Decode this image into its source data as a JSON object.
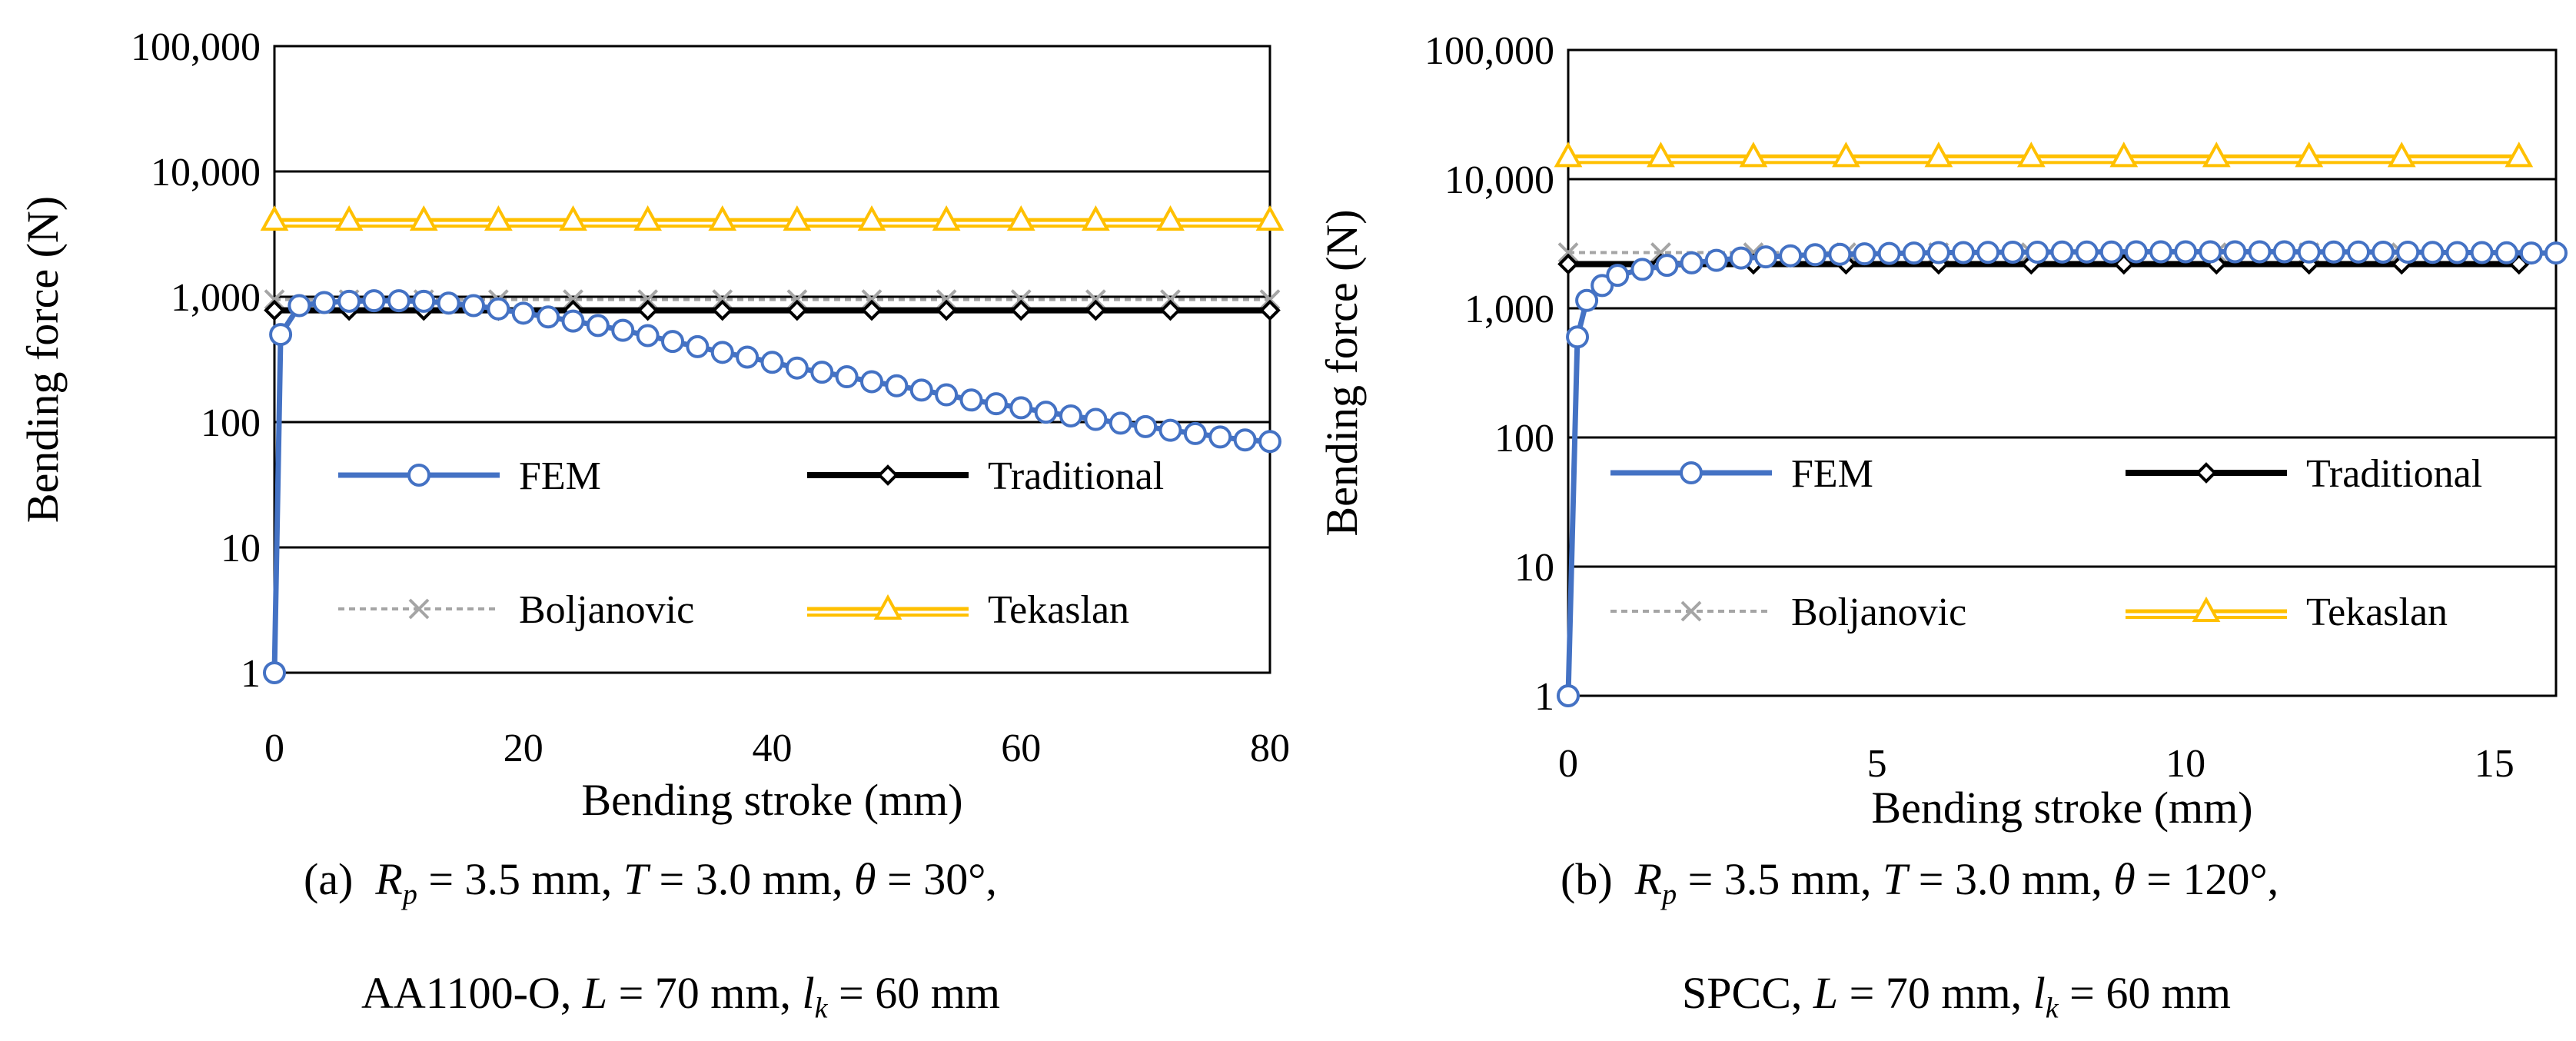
{
  "chart_data": [
    {
      "type": "line",
      "panel": "a",
      "yscale": "log",
      "xlabel": "Bending stroke (mm)",
      "ylabel": "Bending force (N)",
      "xlim": [
        0,
        80
      ],
      "ylim": [
        1,
        100000
      ],
      "xticks": [
        0,
        20,
        40,
        60,
        80
      ],
      "ytick_labels": [
        "1",
        "10",
        "100",
        "1,000",
        "10,000",
        "100,000"
      ],
      "series": [
        {
          "name": "FEM",
          "color": "#4472c4",
          "marker": "circle",
          "x": [
            0,
            0.5,
            2,
            4,
            6,
            8,
            10,
            12,
            14,
            16,
            18,
            20,
            22,
            24,
            26,
            28,
            30,
            32,
            34,
            36,
            38,
            40,
            42,
            44,
            46,
            48,
            50,
            52,
            54,
            56,
            58,
            60,
            62,
            64,
            66,
            68,
            70,
            72,
            74,
            76,
            78,
            80
          ],
          "y": [
            1,
            500,
            850,
            900,
            920,
            930,
            930,
            920,
            890,
            850,
            800,
            740,
            690,
            640,
            590,
            540,
            490,
            440,
            400,
            360,
            330,
            300,
            270,
            250,
            230,
            210,
            195,
            180,
            165,
            150,
            140,
            130,
            120,
            112,
            105,
            98,
            92,
            86,
            81,
            76,
            72,
            70
          ]
        },
        {
          "name": "Traditional",
          "color": "#000000",
          "marker": "diamond",
          "x": [
            0,
            6,
            12,
            18,
            24,
            30,
            36,
            42,
            48,
            54,
            60,
            66,
            72,
            80
          ],
          "y": [
            780,
            780,
            780,
            780,
            780,
            780,
            780,
            780,
            780,
            780,
            780,
            780,
            780,
            780
          ]
        },
        {
          "name": "Boljanovic",
          "color": "#a5a5a5",
          "marker": "x",
          "x": [
            0,
            6,
            12,
            18,
            24,
            30,
            36,
            42,
            48,
            54,
            60,
            66,
            72,
            80
          ],
          "y": [
            950,
            950,
            950,
            950,
            950,
            950,
            950,
            950,
            950,
            950,
            950,
            950,
            950,
            950
          ]
        },
        {
          "name": "Tekaslan",
          "color": "#ffc000",
          "marker": "triangle",
          "x": [
            0,
            6,
            12,
            18,
            24,
            30,
            36,
            42,
            48,
            54,
            60,
            66,
            72,
            80
          ],
          "y": [
            4100,
            4100,
            4100,
            4100,
            4100,
            4100,
            4100,
            4100,
            4100,
            4100,
            4100,
            4100,
            4100,
            4100
          ]
        }
      ]
    },
    {
      "type": "line",
      "panel": "b",
      "yscale": "log",
      "xlabel": "Bending stroke (mm)",
      "ylabel": "Bending force (N)",
      "xlim": [
        0,
        16
      ],
      "ylim": [
        1,
        100000
      ],
      "xticks": [
        0,
        5,
        10,
        15
      ],
      "ytick_labels": [
        "1",
        "10",
        "100",
        "1,000",
        "10,000",
        "100,000"
      ],
      "series": [
        {
          "name": "FEM",
          "color": "#4472c4",
          "marker": "circle",
          "x": [
            0,
            0.15,
            0.3,
            0.55,
            0.8,
            1.2,
            1.6,
            2,
            2.4,
            2.8,
            3.2,
            3.6,
            4,
            4.4,
            4.8,
            5.2,
            5.6,
            6,
            6.4,
            6.8,
            7.2,
            7.6,
            8,
            8.4,
            8.8,
            9.2,
            9.6,
            10,
            10.4,
            10.8,
            11.2,
            11.6,
            12,
            12.4,
            12.8,
            13.2,
            13.6,
            14,
            14.4,
            14.8,
            15.2,
            15.6,
            16
          ],
          "y": [
            1,
            600,
            1150,
            1500,
            1800,
            2000,
            2150,
            2250,
            2350,
            2450,
            2500,
            2550,
            2600,
            2620,
            2640,
            2660,
            2680,
            2700,
            2700,
            2710,
            2720,
            2720,
            2730,
            2730,
            2730,
            2740,
            2740,
            2740,
            2740,
            2740,
            2740,
            2740,
            2730,
            2730,
            2730,
            2720,
            2720,
            2710,
            2700,
            2700,
            2690,
            2680,
            2680
          ]
        },
        {
          "name": "Traditional",
          "color": "#000000",
          "marker": "diamond",
          "x": [
            0,
            1.5,
            3,
            4.5,
            6,
            7.5,
            9,
            10.5,
            12,
            13.5,
            15.4
          ],
          "y": [
            2200,
            2200,
            2200,
            2200,
            2200,
            2200,
            2200,
            2200,
            2200,
            2200,
            2200
          ]
        },
        {
          "name": "Boljanovic",
          "color": "#a5a5a5",
          "marker": "x",
          "x": [
            0,
            1.5,
            3,
            4.5,
            6,
            7.5,
            9,
            10.5,
            12,
            13.5,
            15.4
          ],
          "y": [
            2700,
            2700,
            2700,
            2700,
            2700,
            2700,
            2700,
            2700,
            2700,
            2700,
            2700
          ]
        },
        {
          "name": "Tekaslan",
          "color": "#ffc000",
          "marker": "triangle",
          "x": [
            0,
            1.5,
            3,
            4.5,
            6,
            7.5,
            9,
            10.5,
            12,
            13.5,
            15.4
          ],
          "y": [
            15000,
            15000,
            15000,
            15000,
            15000,
            15000,
            15000,
            15000,
            15000,
            15000,
            15000
          ]
        }
      ]
    }
  ],
  "captions": {
    "a": {
      "label": "(a)",
      "rp_symbol": "R",
      "rp_sub": "p",
      "rp_value": " = 3.5 mm, ",
      "t_symbol": "T",
      "t_value": " = 3.0 mm, ",
      "theta_symbol": "θ",
      "theta_value": " = 30°,",
      "material": "AA1100-O, ",
      "l_symbol": "L",
      "l_value": " = 70 mm, ",
      "lk_symbol": "l",
      "lk_sub": "k",
      "lk_value": " = 60 mm"
    },
    "b": {
      "label": "(b)",
      "rp_symbol": "R",
      "rp_sub": "p",
      "rp_value": " = 3.5 mm, ",
      "t_symbol": "T",
      "t_value": " = 3.0 mm, ",
      "theta_symbol": "θ",
      "theta_value": " = 120°,",
      "material": "SPCC, ",
      "l_symbol": "L",
      "l_value": " = 70 mm, ",
      "lk_symbol": "l",
      "lk_sub": "k",
      "lk_value": " = 60 mm"
    }
  }
}
